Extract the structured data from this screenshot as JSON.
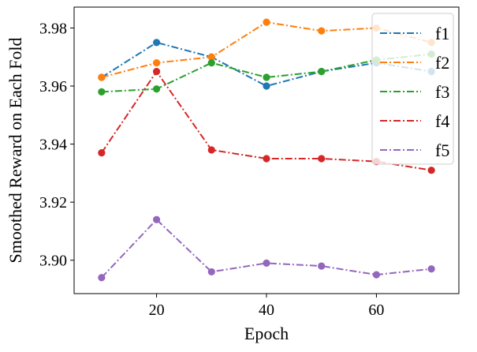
{
  "chart_data": {
    "type": "line",
    "title": "",
    "xlabel": "Epoch",
    "ylabel": "Smoothed Reward on Each Fold",
    "xlim": [
      5,
      75
    ],
    "ylim": [
      3.8885,
      3.9872
    ],
    "xticks": [
      20,
      40,
      60
    ],
    "yticks": [
      3.9,
      3.92,
      3.94,
      3.96,
      3.98
    ],
    "ytick_labels": [
      "3.90",
      "3.92",
      "3.94",
      "3.96",
      "3.98"
    ],
    "grid": false,
    "legend_position": "top-right",
    "line_style": "dash-dot",
    "x": [
      10,
      20,
      30,
      40,
      50,
      60,
      70
    ],
    "series": [
      {
        "name": "f1",
        "color": "#1f77b4",
        "values": [
          3.963,
          3.975,
          3.97,
          3.96,
          3.965,
          3.968,
          3.965
        ]
      },
      {
        "name": "f2",
        "color": "#ff7f0e",
        "values": [
          3.963,
          3.968,
          3.97,
          3.982,
          3.979,
          3.98,
          3.975
        ]
      },
      {
        "name": "f3",
        "color": "#2ca02c",
        "values": [
          3.958,
          3.959,
          3.968,
          3.963,
          3.965,
          3.969,
          3.971
        ]
      },
      {
        "name": "f4",
        "color": "#d62728",
        "values": [
          3.937,
          3.965,
          3.938,
          3.935,
          3.935,
          3.934,
          3.931
        ]
      },
      {
        "name": "f5",
        "color": "#9467bd",
        "values": [
          3.894,
          3.914,
          3.896,
          3.899,
          3.898,
          3.895,
          3.897
        ]
      }
    ]
  }
}
